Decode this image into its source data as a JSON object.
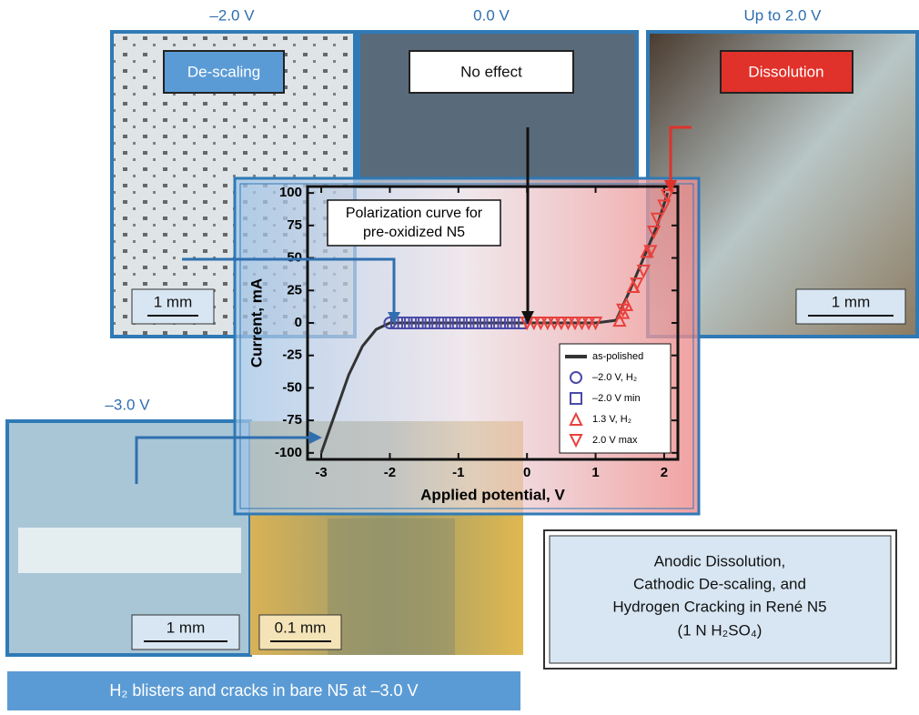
{
  "panels": [
    {
      "potential": "–2.0 V",
      "label": "De-scaling",
      "scale": "1 mm"
    },
    {
      "potential": "0.0 V",
      "label": "No effect"
    },
    {
      "potential": "Up to 2.0 V",
      "label": "Dissolution",
      "scale": "1 mm"
    },
    {
      "potential": "–3.0 V",
      "scale": "1 mm"
    },
    {
      "scale": "0.1 mm"
    }
  ],
  "caption": [
    "Anodic Dissolution,",
    "Cathodic De-scaling, and",
    "Hydrogen Cracking in René N5",
    "(1 N H₂SO₄)"
  ],
  "banner": "H₂ blisters and cracks in bare N5 at –3.0 V",
  "chart_data": {
    "type": "line",
    "annotation": [
      "Polarization curve for",
      "pre-oxidized N5"
    ],
    "xlabel": "Applied potential, V",
    "ylabel": "Current, mA",
    "xlim": [
      -3.2,
      2.2
    ],
    "ylim": [
      -105,
      105
    ],
    "xticks": [
      -3,
      -2,
      -1,
      0,
      1,
      2
    ],
    "yticks": [
      -100,
      -75,
      -50,
      -25,
      0,
      25,
      50,
      75,
      100
    ],
    "legend": "lower right",
    "series": [
      {
        "name": "as-polished",
        "marker": "line",
        "color": "#333333",
        "x": [
          -3.0,
          -2.8,
          -2.6,
          -2.4,
          -2.2,
          -2.0,
          -1.5,
          0,
          1.0,
          1.3,
          1.5,
          1.7,
          1.9,
          2.05
        ],
        "values": [
          -100,
          -70,
          -40,
          -18,
          -5,
          0,
          0,
          0,
          0,
          2,
          25,
          50,
          75,
          100
        ]
      },
      {
        "name": "–2.0 V, H₂",
        "marker": "circle",
        "color": "#4a4aa8",
        "x": [
          -2.0
        ],
        "values": [
          0
        ]
      },
      {
        "name": "–2.0 V min",
        "marker": "square",
        "color": "#4a4aa8",
        "x": [
          -1.9,
          -1.8,
          -1.7,
          -1.6,
          -1.5,
          -1.4,
          -1.3,
          -1.2,
          -1.1,
          -1.0,
          -0.9,
          -0.8,
          -0.7,
          -0.6,
          -0.5,
          -0.4,
          -0.3,
          -0.2,
          -0.1
        ],
        "values": [
          0,
          0,
          0,
          0,
          0,
          0,
          0,
          0,
          0,
          0,
          0,
          0,
          0,
          0,
          0,
          0,
          0,
          0,
          0
        ]
      },
      {
        "name": "1.3 V, H₂",
        "marker": "triangle-up",
        "color": "#e8413c",
        "x": [
          1.35,
          1.4,
          1.45,
          1.55,
          1.75
        ],
        "values": [
          2,
          8,
          14,
          28,
          55
        ]
      },
      {
        "name": "2.0 V max",
        "marker": "triangle-down",
        "color": "#e8413c",
        "x": [
          0,
          0.1,
          0.2,
          0.3,
          0.4,
          0.5,
          0.6,
          0.7,
          0.8,
          0.9,
          1.0,
          1.4,
          1.6,
          1.7,
          1.8,
          1.85,
          1.9,
          2.0,
          2.05
        ],
        "values": [
          0,
          0,
          0,
          0,
          0,
          0,
          0,
          0,
          0,
          0,
          0,
          10,
          30,
          40,
          55,
          70,
          80,
          90,
          98
        ]
      }
    ]
  }
}
